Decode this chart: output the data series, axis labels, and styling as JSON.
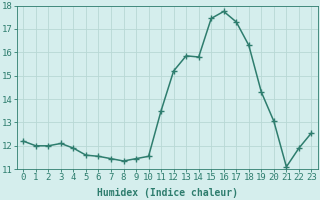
{
  "x": [
    0,
    1,
    2,
    3,
    4,
    5,
    6,
    7,
    8,
    9,
    10,
    11,
    12,
    13,
    14,
    15,
    16,
    17,
    18,
    19,
    20,
    21,
    22,
    23
  ],
  "y": [
    12.2,
    12.0,
    12.0,
    12.1,
    11.9,
    11.6,
    11.55,
    11.45,
    11.35,
    11.45,
    11.55,
    13.5,
    15.2,
    15.85,
    15.8,
    17.45,
    17.75,
    17.3,
    16.3,
    14.3,
    13.05,
    11.1,
    11.9,
    12.55
  ],
  "line_color": "#2e7d6e",
  "marker": "+",
  "marker_size": 4.0,
  "line_width": 1.1,
  "bg_color": "#d5eeed",
  "grid_color": "#b8d8d5",
  "xlabel": "Humidex (Indice chaleur)",
  "xlabel_fontsize": 7,
  "tick_fontsize": 6.5,
  "ylim": [
    11,
    18
  ],
  "xlim": [
    -0.5,
    23.5
  ],
  "yticks": [
    11,
    12,
    13,
    14,
    15,
    16,
    17,
    18
  ],
  "xticks": [
    0,
    1,
    2,
    3,
    4,
    5,
    6,
    7,
    8,
    9,
    10,
    11,
    12,
    13,
    14,
    15,
    16,
    17,
    18,
    19,
    20,
    21,
    22,
    23
  ]
}
